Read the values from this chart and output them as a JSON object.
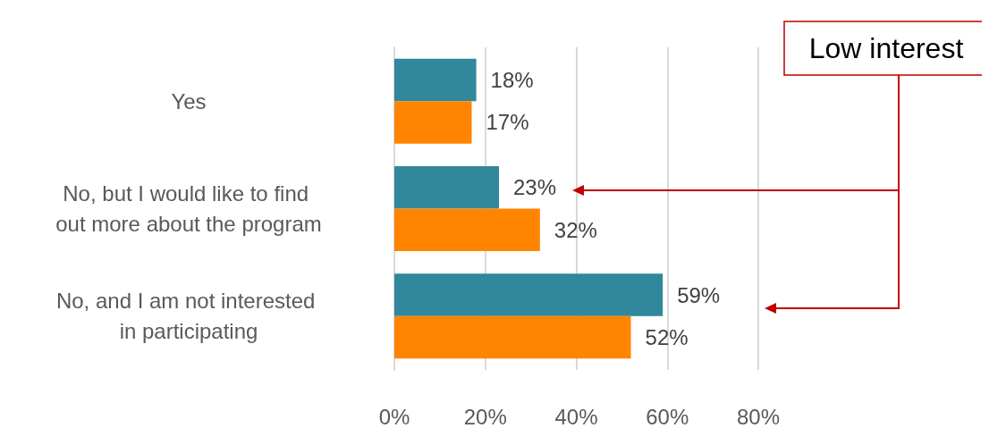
{
  "chart_data": {
    "type": "bar",
    "orientation": "horizontal",
    "categories": [
      "Yes",
      "No, but I would like to find out more about the program",
      "No, and I am not interested in participating"
    ],
    "series": [
      {
        "color": "#31879c",
        "values": [
          18,
          23,
          59
        ],
        "value_labels": [
          "18%",
          "23%",
          "59%"
        ]
      },
      {
        "color": "#ff8400",
        "values": [
          17,
          32,
          52
        ],
        "value_labels": [
          "17%",
          "32%",
          "52%"
        ]
      }
    ],
    "xlim": [
      0,
      80
    ],
    "xticks": [
      {
        "value": 0,
        "label": "0%"
      },
      {
        "value": 20,
        "label": "20%"
      },
      {
        "value": 40,
        "label": "40%"
      },
      {
        "value": 60,
        "label": "60%"
      },
      {
        "value": 80,
        "label": "80%"
      }
    ],
    "grid": "x",
    "annotations": [
      "Low interest"
    ]
  }
}
